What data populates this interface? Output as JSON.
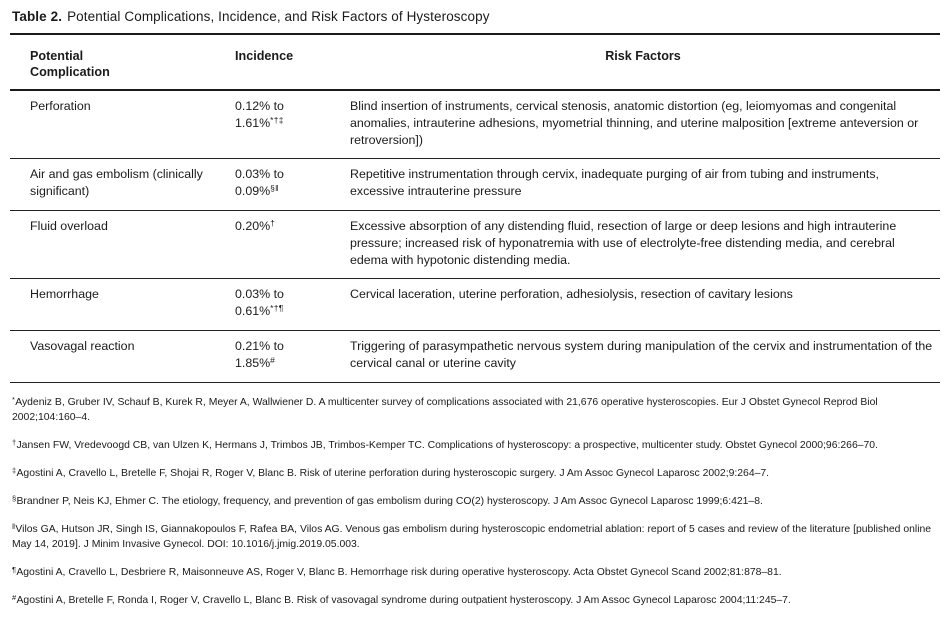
{
  "table": {
    "title_label": "Table 2.",
    "title_text": "Potential Complications, Incidence, and Risk Factors of Hysteroscopy",
    "columns": [
      "Potential\nComplication",
      "Incidence",
      "Risk Factors"
    ],
    "rows": [
      {
        "complication": "Perforation",
        "incidence": [
          {
            "text": "0.12% to",
            "sup": ""
          },
          {
            "text": "1.61%",
            "sup": "*†‡"
          }
        ],
        "risk_factors": "Blind insertion of instruments, cervical stenosis, anatomic distortion (eg, leiomyomas and congenital anomalies, intrauterine adhesions, myometrial thinning, and uterine malposition [extreme anteversion or retroversion])"
      },
      {
        "complication": "Air and gas embolism (clinically significant)",
        "incidence": [
          {
            "text": "0.03% to",
            "sup": ""
          },
          {
            "text": "0.09%",
            "sup": "§‖"
          }
        ],
        "risk_factors": "Repetitive instrumentation through cervix, inadequate purging of air from tubing and instruments, excessive intrauterine pressure"
      },
      {
        "complication": "Fluid overload",
        "incidence": [
          {
            "text": "0.20%",
            "sup": "†"
          }
        ],
        "risk_factors": "Excessive absorption of any distending fluid, resection of large or deep lesions and high intrauterine pressure; increased risk of hyponatremia with use of electrolyte-free distending media, and cerebral edema with hypotonic distending media."
      },
      {
        "complication": "Hemorrhage",
        "incidence": [
          {
            "text": "0.03% to",
            "sup": ""
          },
          {
            "text": "0.61%",
            "sup": "*†¶"
          }
        ],
        "risk_factors": "Cervical laceration, uterine perforation, adhesiolysis, resection of cavitary lesions"
      },
      {
        "complication": "Vasovagal reaction",
        "incidence": [
          {
            "text": "0.21% to",
            "sup": ""
          },
          {
            "text": "1.85%",
            "sup": "#"
          }
        ],
        "risk_factors": "Triggering of parasympathetic nervous system during manipulation of the cervix and instrumentation of the cervical canal or uterine cavity"
      }
    ],
    "footnotes": [
      {
        "marker": "*",
        "text": "Aydeniz B, Gruber IV, Schauf B, Kurek R, Meyer A, Wallwiener D. A multicenter survey of complications associated with 21,676 operative hysteroscopies. Eur J Obstet Gynecol Reprod Biol 2002;104:160–4."
      },
      {
        "marker": "†",
        "text": "Jansen FW, Vredevoogd CB, van Ulzen K, Hermans J, Trimbos JB, Trimbos-Kemper TC. Complications of hysteroscopy: a prospective, multicenter study. Obstet Gynecol 2000;96:266–70."
      },
      {
        "marker": "‡",
        "text": "Agostini A, Cravello L, Bretelle F, Shojai R, Roger V, Blanc B. Risk of uterine perforation during hysteroscopic surgery. J Am Assoc Gynecol Laparosc 2002;9:264–7."
      },
      {
        "marker": "§",
        "text": "Brandner P, Neis KJ, Ehmer C. The etiology, frequency, and prevention of gas embolism during CO(2) hysteroscopy. J Am Assoc Gynecol Laparosc 1999;6:421–8."
      },
      {
        "marker": "‖",
        "text": "Vilos GA, Hutson JR, Singh IS, Giannakopoulos F, Rafea BA, Vilos AG. Venous gas embolism during hysteroscopic endometrial ablation: report of 5 cases and review of the literature [published online May 14, 2019]. J Minim Invasive Gynecol. DOI: 10.1016/j.jmig.2019.05.003."
      },
      {
        "marker": "¶",
        "text": "Agostini A, Cravello L, Desbriere R, Maisonneuve AS, Roger V, Blanc B. Hemorrhage risk during operative hysteroscopy. Acta Obstet Gynecol Scand 2002;81:878–81."
      },
      {
        "marker": "#",
        "text": "Agostini A, Bretelle F, Ronda I, Roger V, Cravello L, Blanc B. Risk of vasovagal syndrome during outpatient hysteroscopy. J Am Assoc Gynecol Laparosc 2004;11:245–7."
      }
    ]
  }
}
